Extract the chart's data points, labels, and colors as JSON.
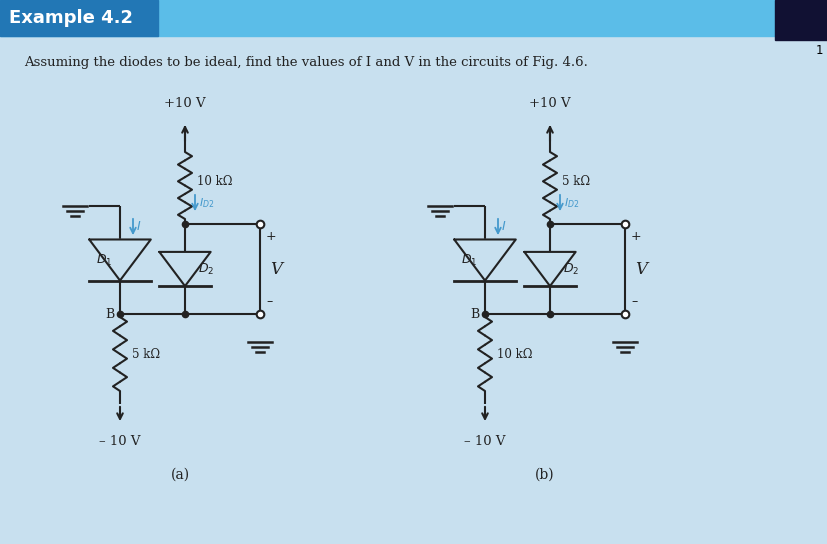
{
  "title": "Example 4.2",
  "subtitle": "Assuming the diodes to be ideal, find the values of I and V in the circuits of Fig. 4.6.",
  "header_bg": "#5bbde8",
  "header_title_bg": "#2277b5",
  "body_bg": "#c8e0ef",
  "header_text_color": "#ffffff",
  "black": "#222222",
  "blue": "#4499cc",
  "label_a": "(a)",
  "label_b": "(b)",
  "circuit_a": {
    "r_top": "10 kΩ",
    "r_bot": "5 kΩ"
  },
  "circuit_b": {
    "r_top": "5 kΩ",
    "r_bot": "10 kΩ"
  }
}
